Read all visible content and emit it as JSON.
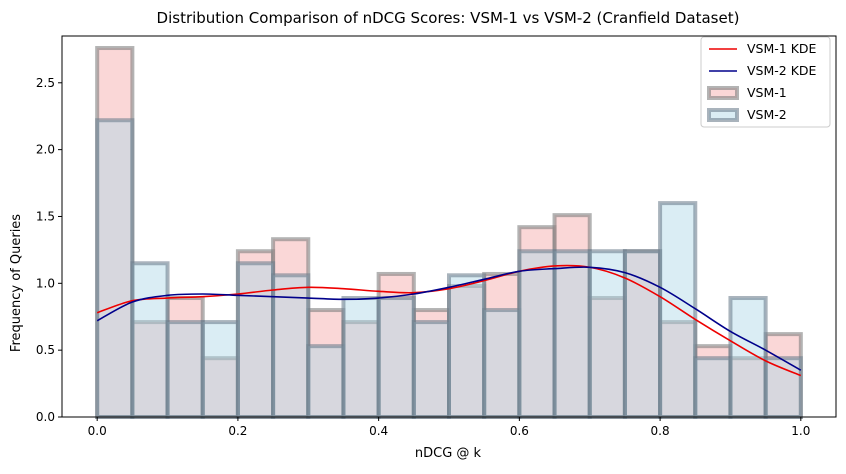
{
  "chart_data": {
    "type": "bar",
    "title": "Distribution Comparison of nDCG Scores: VSM-1 vs VSM-2 (Cranfield Dataset)",
    "xlabel": "nDCG @ k",
    "ylabel": "Frequency of Queries",
    "xlim": [
      -0.05,
      1.05
    ],
    "ylim": [
      0,
      2.85
    ],
    "xticks": [
      "0.0",
      "0.2",
      "0.4",
      "0.6",
      "0.8",
      "1.0"
    ],
    "xtick_values": [
      0.0,
      0.2,
      0.4,
      0.6,
      0.8,
      1.0
    ],
    "yticks": [
      "0.0",
      "0.5",
      "1.0",
      "1.5",
      "2.0",
      "2.5"
    ],
    "ytick_values": [
      0.0,
      0.5,
      1.0,
      1.5,
      2.0,
      2.5
    ],
    "bin_edges": [
      0.0,
      0.05,
      0.1,
      0.15,
      0.2,
      0.25,
      0.3,
      0.35,
      0.4,
      0.45,
      0.5,
      0.55,
      0.6,
      0.65,
      0.7,
      0.75,
      0.8,
      0.85,
      0.9,
      0.95,
      1.0
    ],
    "series": [
      {
        "name": "VSM-1",
        "kind": "histogram",
        "fill": "#f4a6a6",
        "edge": "#808080",
        "values": [
          2.76,
          0.71,
          0.89,
          0.44,
          1.24,
          1.33,
          0.8,
          0.71,
          1.07,
          0.8,
          0.98,
          1.07,
          1.42,
          1.51,
          0.89,
          1.24,
          0.71,
          0.53,
          0.44,
          0.62
        ]
      },
      {
        "name": "VSM-2",
        "kind": "histogram",
        "fill": "#add8e6",
        "edge": "#708090",
        "values": [
          2.22,
          1.15,
          0.71,
          0.71,
          1.15,
          1.06,
          0.53,
          0.89,
          0.89,
          0.71,
          1.06,
          0.8,
          1.24,
          1.24,
          1.24,
          1.24,
          1.6,
          0.44,
          0.89,
          0.44
        ]
      },
      {
        "name": "VSM-1 KDE",
        "kind": "line",
        "color": "#ee0000",
        "x": [
          0.0,
          0.05,
          0.1,
          0.15,
          0.2,
          0.25,
          0.3,
          0.35,
          0.4,
          0.45,
          0.5,
          0.55,
          0.6,
          0.65,
          0.7,
          0.75,
          0.8,
          0.85,
          0.9,
          0.95,
          1.0
        ],
        "y": [
          0.78,
          0.87,
          0.89,
          0.9,
          0.92,
          0.95,
          0.97,
          0.96,
          0.94,
          0.93,
          0.96,
          1.02,
          1.09,
          1.13,
          1.12,
          1.04,
          0.9,
          0.73,
          0.57,
          0.42,
          0.31
        ]
      },
      {
        "name": "VSM-2 KDE",
        "kind": "line",
        "color": "#00008b",
        "x": [
          0.0,
          0.05,
          0.1,
          0.15,
          0.2,
          0.25,
          0.3,
          0.35,
          0.4,
          0.45,
          0.5,
          0.55,
          0.6,
          0.65,
          0.7,
          0.75,
          0.8,
          0.85,
          0.9,
          0.95,
          1.0
        ],
        "y": [
          0.72,
          0.86,
          0.91,
          0.92,
          0.91,
          0.9,
          0.89,
          0.88,
          0.89,
          0.92,
          0.97,
          1.03,
          1.09,
          1.11,
          1.12,
          1.08,
          0.97,
          0.81,
          0.64,
          0.5,
          0.35
        ]
      }
    ],
    "legend": {
      "placement": "top-right",
      "items": [
        "VSM-1 KDE",
        "VSM-2 KDE",
        "VSM-1",
        "VSM-2"
      ]
    },
    "grid": false
  }
}
